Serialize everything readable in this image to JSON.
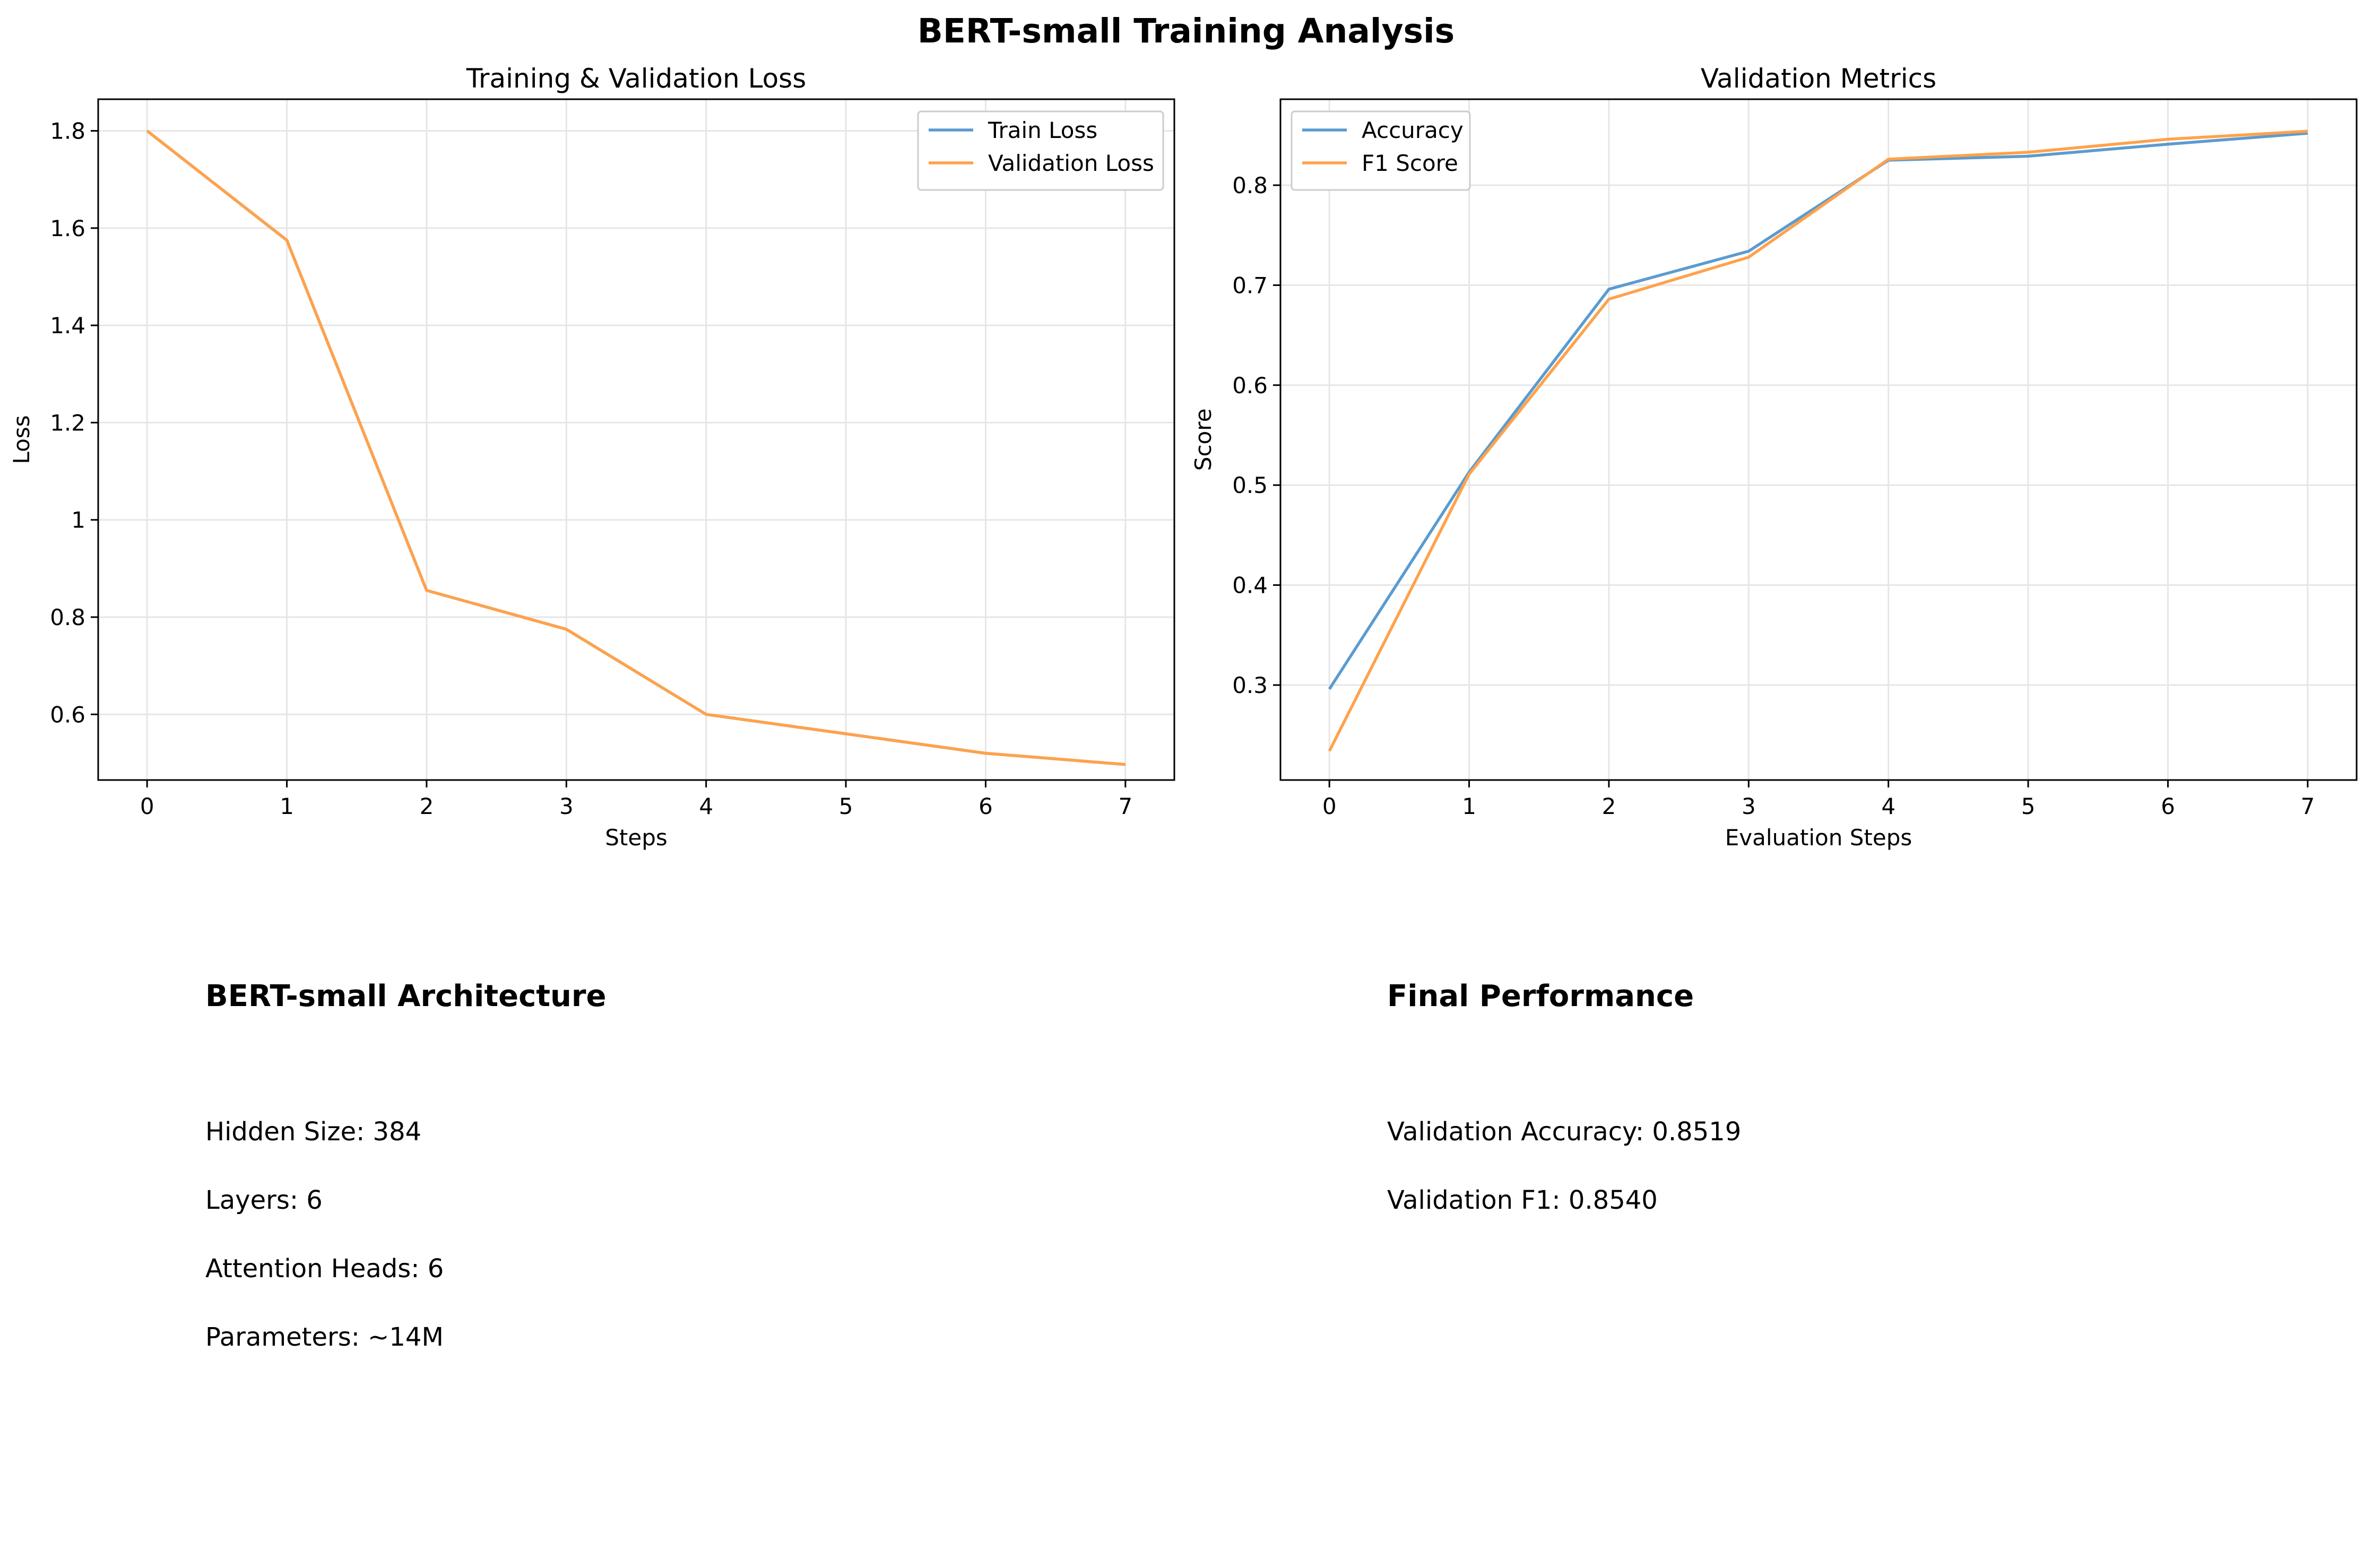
{
  "figure": {
    "title": "BERT-small Training Analysis"
  },
  "chart_data": [
    {
      "type": "line",
      "title": "Training & Validation Loss",
      "xlabel": "Steps",
      "ylabel": "Loss",
      "x": [
        0,
        1,
        2,
        3,
        4,
        5,
        6,
        7
      ],
      "xlim": [
        -0.35,
        7.35
      ],
      "ylim": [
        0.465,
        1.865
      ],
      "xticks": [
        0,
        1,
        2,
        3,
        4,
        5,
        6,
        7
      ],
      "yticks": [
        0.6,
        0.8,
        1.0,
        1.2,
        1.4,
        1.6,
        1.8
      ],
      "grid": true,
      "legend": "top-right",
      "series": [
        {
          "name": "Train Loss",
          "color": "#5b9bd0",
          "values": [
            1.8,
            1.575,
            0.855,
            0.775,
            0.6,
            0.56,
            0.52,
            0.497
          ]
        },
        {
          "name": "Validation Loss",
          "color": "#ffa24b",
          "values": [
            1.8,
            1.575,
            0.855,
            0.775,
            0.6,
            0.56,
            0.52,
            0.497
          ]
        }
      ]
    },
    {
      "type": "line",
      "title": "Validation Metrics",
      "xlabel": "Evaluation Steps",
      "ylabel": "Score",
      "x": [
        0,
        1,
        2,
        3,
        4,
        5,
        6,
        7
      ],
      "xlim": [
        -0.35,
        7.35
      ],
      "ylim": [
        0.205,
        0.886
      ],
      "xticks": [
        0,
        1,
        2,
        3,
        4,
        5,
        6,
        7
      ],
      "yticks": [
        0.3,
        0.4,
        0.5,
        0.6,
        0.7,
        0.8
      ],
      "grid": true,
      "legend": "top-left",
      "series": [
        {
          "name": "Accuracy",
          "color": "#5b9bd0",
          "values": [
            0.296,
            0.513,
            0.696,
            0.734,
            0.825,
            0.829,
            0.841,
            0.852
          ]
        },
        {
          "name": "F1 Score",
          "color": "#ffa24b",
          "values": [
            0.234,
            0.511,
            0.686,
            0.728,
            0.826,
            0.833,
            0.846,
            0.854
          ]
        }
      ]
    }
  ],
  "architecture": {
    "title": "BERT-small Architecture",
    "lines": [
      "Hidden Size: 384",
      "Layers: 6",
      "Attention Heads: 6",
      "Parameters: ~14M"
    ]
  },
  "performance": {
    "title": "Final Performance",
    "lines": [
      "Validation Accuracy: 0.8519",
      "Validation F1: 0.8540"
    ]
  }
}
